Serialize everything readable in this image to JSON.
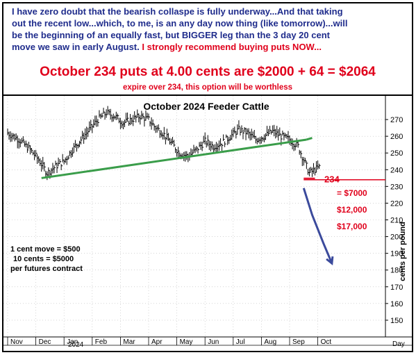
{
  "header": {
    "line1": "I have zero doubt that the bearish collaspe is fully underway...And that taking",
    "line2": "out the recent low...which, to me, is an any day now thing (like tomorrow)...will",
    "line3_a": "be the beginning of an equally fast, but ",
    "line3_b": "BIGGER",
    "line3_c": " leg than the 3 day 20 cent",
    "line4_a": "move we saw in early August.  ",
    "line4_b": "I strongly recommend buying puts NOW...",
    "big": "October 234 puts at 4.00 cents are $2000 + 64 = $2064",
    "sub": "expire over 234, this option will be worthless"
  },
  "colors": {
    "text_blue": "#1f2c8c",
    "alert_red": "#e0001b",
    "trend_green": "#3a9d4a",
    "arrow_blue": "#3b4a9c",
    "bars": "#000000"
  },
  "chart_data": {
    "type": "ohlc",
    "title": "October 2024 Feeder Cattle",
    "ylabel": "cents per pound",
    "xlabel": "Day",
    "ylim": [
      140,
      280
    ],
    "yticks": [
      150,
      160,
      170,
      180,
      190,
      200,
      210,
      220,
      230,
      240,
      250,
      260,
      270
    ],
    "months": [
      "Nov",
      "Dec",
      "Jan",
      "Feb",
      "Mar",
      "Apr",
      "May",
      "Jun",
      "Jul",
      "Aug",
      "Sep",
      "Oct"
    ],
    "year_label": "2024",
    "close_path": [
      [
        0,
        262
      ],
      [
        4,
        258
      ],
      [
        8,
        252
      ],
      [
        11,
        246
      ],
      [
        14,
        238
      ],
      [
        17,
        242
      ],
      [
        20,
        245
      ],
      [
        23,
        252
      ],
      [
        26,
        258
      ],
      [
        29,
        264
      ],
      [
        32,
        270
      ],
      [
        35,
        274
      ],
      [
        38,
        272
      ],
      [
        41,
        268
      ],
      [
        44,
        270
      ],
      [
        47,
        272
      ],
      [
        50,
        270
      ],
      [
        52,
        266
      ],
      [
        55,
        262
      ],
      [
        58,
        256
      ],
      [
        61,
        250
      ],
      [
        64,
        248
      ],
      [
        67,
        252
      ],
      [
        70,
        257
      ],
      [
        73,
        254
      ],
      [
        76,
        256
      ],
      [
        79,
        260
      ],
      [
        82,
        264
      ],
      [
        85,
        262
      ],
      [
        88,
        258
      ],
      [
        91,
        260
      ],
      [
        94,
        263
      ],
      [
        97,
        260
      ],
      [
        100,
        258
      ],
      [
        103,
        254
      ],
      [
        105,
        246
      ],
      [
        107,
        238
      ],
      [
        109,
        240
      ],
      [
        111,
        242
      ]
    ],
    "trendline_support": [
      [
        12,
        235
      ],
      [
        106,
        258
      ]
    ],
    "trendline_cut_price": 234,
    "strike_label": "234",
    "projection_arrow": [
      [
        105,
        229
      ],
      [
        108,
        213
      ],
      [
        112,
        196
      ],
      [
        115,
        184
      ]
    ],
    "annotations": {
      "targets": [
        {
          "label": "= $7000",
          "price": 226
        },
        {
          "label": "$12,000",
          "price": 216
        },
        {
          "label": "$17,000",
          "price": 206
        }
      ],
      "notes": [
        "1 cent move = $500",
        "10 cents = $5000",
        "per futures contract"
      ]
    }
  }
}
